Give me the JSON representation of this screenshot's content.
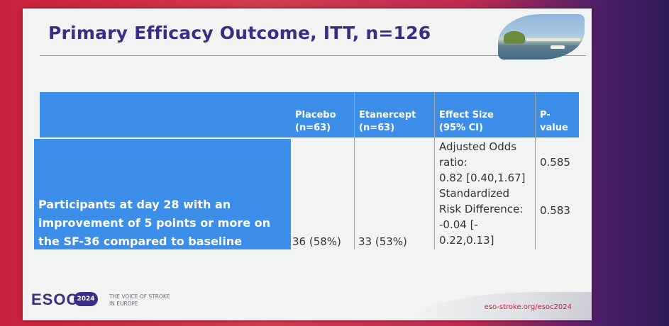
{
  "slide": {
    "title": "Primary Efficacy Outcome, ITT, n=126"
  },
  "table": {
    "headers": [
      {
        "line1": "Placebo",
        "line2": "(n=63)"
      },
      {
        "line1": "Etanercept",
        "line2": "(n=63)"
      },
      {
        "line1": "Effect Size",
        "line2": "(95% CI)"
      },
      {
        "line1": "P-",
        "line2": "value"
      }
    ],
    "row": {
      "label_line1": "Participants at day 28 with an",
      "label_line2": "improvement of 5 points or more on",
      "label_line3": "the SF-36 compared to baseline",
      "placebo": "36 (58%)",
      "etanercept": "33 (53%)",
      "effect_lines": [
        "Adjusted Odds",
        "ratio:",
        "0.82 [0.40,1.67]",
        "Standardized",
        "Risk Difference:",
        "-0.04 [-",
        "0.22,0.13]"
      ],
      "pvalue_1": "0.585",
      "pvalue_2": "0.583"
    }
  },
  "footer": {
    "logo": "ESOC",
    "badge": "2024",
    "tagline_line1": "THE VOICE OF STROKE",
    "tagline_line2": "IN EUROPE",
    "url": "eso-stroke.org/esoc2024"
  }
}
